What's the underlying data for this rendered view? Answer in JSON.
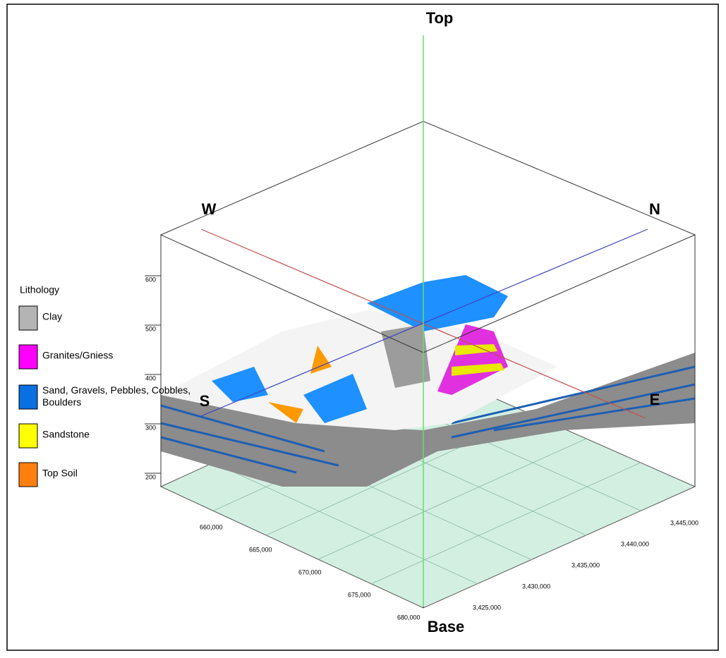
{
  "directions": {
    "top": "Top",
    "base": "Base",
    "west": "W",
    "north": "N",
    "south": "S",
    "east": "E"
  },
  "legend": {
    "title": "Lithology",
    "items": [
      {
        "label": "Clay",
        "color": "#b4b4b4"
      },
      {
        "label": "Granites/Gniess",
        "color": "#ff00ff"
      },
      {
        "label": "Sand, Gravels, Pebbles, Cobbles, Boulders",
        "color": "#0a6fe0"
      },
      {
        "label": "Sandstone",
        "color": "#ffff00"
      },
      {
        "label": "Top Soil",
        "color": "#ff7f0e"
      }
    ]
  },
  "elevation_ticks": [
    "600",
    "500",
    "400",
    "300",
    "200"
  ],
  "easting_ticks": [
    "660,000",
    "665,000",
    "670,000",
    "675,000",
    "680,000"
  ],
  "northing_ticks": [
    "3,425,000",
    "3,430,000",
    "3,435,000",
    "3,440,000",
    "3,445,000"
  ]
}
